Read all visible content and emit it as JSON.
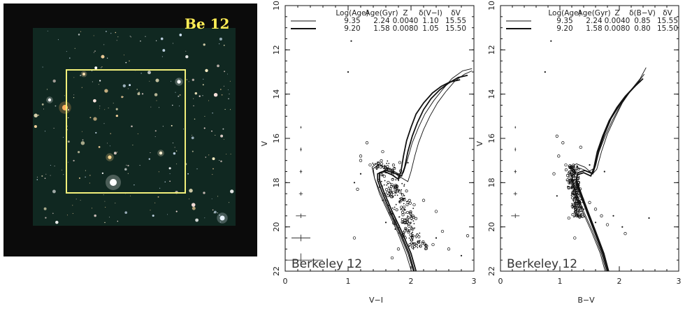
{
  "image_panel": {
    "label": "Be 12",
    "box_color": "#f2f07a",
    "label_color": "#ffee55"
  },
  "chart_data": [
    {
      "type": "scatter",
      "cluster_label": "Berkeley 12",
      "xlabel": "V−I",
      "ylabel": "V",
      "xlim": [
        0,
        3
      ],
      "ylim": [
        22,
        10
      ],
      "x_ticks": [
        "0",
        "1",
        "2",
        "3"
      ],
      "y_ticks": [
        "10",
        "12",
        "14",
        "16",
        "18",
        "20",
        "22"
      ],
      "legend": {
        "headers": [
          "Log(Age)",
          "Age(Gyr)",
          "Z",
          "δ(V−I)",
          "δV"
        ],
        "rows": [
          {
            "style": "thin",
            "values": [
              "9.35",
              "2.24",
              "0.0040",
              "1.10",
              "15.55"
            ]
          },
          {
            "style": "thick",
            "values": [
              "9.20",
              "1.58",
              "0.0080",
              "1.05",
              "15.50"
            ]
          }
        ]
      },
      "isochrones": [
        {
          "style": "thin",
          "points": [
            [
              2.08,
              22.4
            ],
            [
              1.95,
              21.2
            ],
            [
              1.8,
              20.2
            ],
            [
              1.65,
              19.3
            ],
            [
              1.52,
              18.5
            ],
            [
              1.42,
              17.8
            ],
            [
              1.38,
              17.3
            ],
            [
              1.45,
              17.15
            ],
            [
              1.6,
              17.3
            ],
            [
              1.8,
              17.7
            ],
            [
              1.95,
              17.95
            ],
            [
              2.0,
              17.5
            ],
            [
              2.06,
              16.8
            ],
            [
              2.12,
              16.2
            ],
            [
              2.2,
              15.6
            ],
            [
              2.3,
              15.0
            ],
            [
              2.42,
              14.4
            ],
            [
              2.55,
              13.9
            ],
            [
              2.7,
              13.4
            ],
            [
              2.85,
              13.1
            ],
            [
              2.97,
              12.95
            ]
          ]
        },
        {
          "style": "thin",
          "points": [
            [
              2.05,
              22.4
            ],
            [
              1.92,
              21.2
            ],
            [
              1.78,
              20.2
            ],
            [
              1.63,
              19.3
            ],
            [
              1.5,
              18.5
            ],
            [
              1.42,
              17.8
            ],
            [
              1.4,
              17.35
            ],
            [
              1.5,
              17.2
            ],
            [
              1.65,
              17.35
            ],
            [
              1.8,
              17.6
            ],
            [
              1.88,
              17.55
            ],
            [
              1.95,
              16.9
            ],
            [
              2.02,
              16.2
            ],
            [
              2.12,
              15.5
            ],
            [
              2.22,
              14.9
            ],
            [
              2.36,
              14.3
            ],
            [
              2.5,
              13.8
            ],
            [
              2.65,
              13.3
            ],
            [
              2.82,
              12.95
            ],
            [
              2.97,
              12.85
            ]
          ]
        },
        {
          "style": "thick",
          "points": [
            [
              2.12,
              22.4
            ],
            [
              2.0,
              21.2
            ],
            [
              1.85,
              20.2
            ],
            [
              1.7,
              19.3
            ],
            [
              1.58,
              18.5
            ],
            [
              1.5,
              17.9
            ],
            [
              1.5,
              17.55
            ],
            [
              1.6,
              17.45
            ],
            [
              1.72,
              17.55
            ],
            [
              1.85,
              17.7
            ],
            [
              1.9,
              17.3
            ],
            [
              1.95,
              16.6
            ],
            [
              2.02,
              15.9
            ],
            [
              2.1,
              15.3
            ],
            [
              2.2,
              14.7
            ],
            [
              2.32,
              14.2
            ],
            [
              2.46,
              13.8
            ],
            [
              2.6,
              13.5
            ],
            [
              2.75,
              13.25
            ],
            [
              2.9,
              13.15
            ]
          ]
        },
        {
          "style": "thick",
          "points": [
            [
              2.09,
              22.4
            ],
            [
              1.97,
              21.2
            ],
            [
              1.82,
              20.2
            ],
            [
              1.67,
              19.3
            ],
            [
              1.55,
              18.5
            ],
            [
              1.47,
              17.9
            ],
            [
              1.47,
              17.6
            ],
            [
              1.58,
              17.5
            ],
            [
              1.7,
              17.65
            ],
            [
              1.8,
              17.85
            ],
            [
              1.84,
              17.5
            ],
            [
              1.88,
              16.8
            ],
            [
              1.93,
              16.1
            ],
            [
              2.0,
              15.5
            ],
            [
              2.08,
              14.9
            ],
            [
              2.2,
              14.4
            ],
            [
              2.34,
              13.95
            ],
            [
              2.48,
              13.65
            ],
            [
              2.62,
              13.45
            ],
            [
              2.78,
              13.35
            ]
          ]
        }
      ],
      "error_bars": [
        {
          "x": 0.25,
          "y": 15.5,
          "ex": 0.01,
          "ey": 0.05
        },
        {
          "x": 0.25,
          "y": 16.5,
          "ex": 0.015,
          "ey": 0.08
        },
        {
          "x": 0.25,
          "y": 17.5,
          "ex": 0.02,
          "ey": 0.08
        },
        {
          "x": 0.25,
          "y": 18.5,
          "ex": 0.03,
          "ey": 0.08
        },
        {
          "x": 0.25,
          "y": 19.5,
          "ex": 0.08,
          "ey": 0.1
        },
        {
          "x": 0.25,
          "y": 20.5,
          "ex": 0.15,
          "ey": 0.15
        },
        {
          "x": 0.25,
          "y": 21.5,
          "ex": 0.35,
          "ey": 0.3
        }
      ],
      "star_points": [
        [
          1.05,
          11.6
        ],
        [
          1.0,
          13.0
        ],
        [
          1.55,
          18.8
        ],
        [
          1.7,
          19.4
        ],
        [
          1.6,
          19.8
        ],
        [
          1.75,
          20.1
        ],
        [
          1.5,
          18.2
        ],
        [
          1.85,
          18.5
        ],
        [
          2.0,
          19.5
        ],
        [
          2.4,
          20.5
        ],
        [
          2.8,
          21.3
        ],
        [
          1.1,
          18.0
        ],
        [
          1.2,
          17.6
        ],
        [
          1.95,
          17.1
        ]
      ],
      "circle_points": [
        [
          1.3,
          16.2
        ],
        [
          1.2,
          17.0
        ],
        [
          1.35,
          17.2
        ],
        [
          1.15,
          18.3
        ],
        [
          2.2,
          18.8
        ],
        [
          2.4,
          19.3
        ],
        [
          2.5,
          20.2
        ],
        [
          2.9,
          20.4
        ],
        [
          2.6,
          21.0
        ],
        [
          1.2,
          16.8
        ],
        [
          1.55,
          16.6
        ],
        [
          2.05,
          19.0
        ],
        [
          1.8,
          21.0
        ],
        [
          1.7,
          21.4
        ],
        [
          2.35,
          20.8
        ],
        [
          1.1,
          20.5
        ]
      ],
      "cloud": {
        "x_center": 1.55,
        "x_spread": 0.28,
        "y_min": 17.0,
        "y_max": 21.0,
        "x_slope": 0.14
      }
    },
    {
      "type": "scatter",
      "cluster_label": "Berkeley 12",
      "xlabel": "B−V",
      "ylabel": "V",
      "xlim": [
        0,
        3
      ],
      "ylim": [
        22,
        10
      ],
      "x_ticks": [
        "0",
        "1",
        "2",
        "3"
      ],
      "y_ticks": [
        "10",
        "12",
        "14",
        "16",
        "18",
        "20",
        "22"
      ],
      "legend": {
        "headers": [
          "Log(Age)",
          "Age(Gyr)",
          "Z",
          "δ(B−V)",
          "δV"
        ],
        "rows": [
          {
            "style": "thin",
            "values": [
              "9.35",
              "2.24",
              "0.0040",
              "0.85",
              "15.55"
            ]
          },
          {
            "style": "thick",
            "values": [
              "9.20",
              "1.58",
              "0.0080",
              "0.80",
              "15.50"
            ]
          }
        ]
      },
      "isochrones": [
        {
          "style": "thin",
          "points": [
            [
              1.82,
              22.4
            ],
            [
              1.7,
              21.2
            ],
            [
              1.55,
              20.2
            ],
            [
              1.4,
              19.3
            ],
            [
              1.28,
              18.5
            ],
            [
              1.2,
              17.8
            ],
            [
              1.18,
              17.3
            ],
            [
              1.28,
              17.15
            ],
            [
              1.42,
              17.3
            ],
            [
              1.55,
              17.6
            ],
            [
              1.62,
              17.4
            ],
            [
              1.7,
              16.6
            ],
            [
              1.8,
              15.8
            ],
            [
              1.92,
              15.1
            ],
            [
              2.05,
              14.4
            ],
            [
              2.2,
              13.8
            ],
            [
              2.35,
              13.3
            ],
            [
              2.45,
              12.8
            ]
          ]
        },
        {
          "style": "thin",
          "points": [
            [
              1.8,
              22.4
            ],
            [
              1.68,
              21.2
            ],
            [
              1.53,
              20.2
            ],
            [
              1.38,
              19.3
            ],
            [
              1.26,
              18.5
            ],
            [
              1.2,
              17.9
            ],
            [
              1.22,
              17.45
            ],
            [
              1.34,
              17.35
            ],
            [
              1.48,
              17.5
            ],
            [
              1.58,
              17.35
            ],
            [
              1.66,
              16.6
            ],
            [
              1.76,
              15.9
            ],
            [
              1.88,
              15.2
            ],
            [
              2.02,
              14.5
            ],
            [
              2.18,
              13.9
            ],
            [
              2.32,
              13.45
            ],
            [
              2.42,
              13.1
            ]
          ]
        },
        {
          "style": "thick",
          "points": [
            [
              1.86,
              22.4
            ],
            [
              1.74,
              21.2
            ],
            [
              1.6,
              20.2
            ],
            [
              1.47,
              19.3
            ],
            [
              1.36,
              18.5
            ],
            [
              1.28,
              17.9
            ],
            [
              1.3,
              17.55
            ],
            [
              1.42,
              17.45
            ],
            [
              1.55,
              17.6
            ],
            [
              1.6,
              17.2
            ],
            [
              1.66,
              16.5
            ],
            [
              1.75,
              15.8
            ],
            [
              1.86,
              15.1
            ],
            [
              2.0,
              14.5
            ],
            [
              2.14,
              14.0
            ],
            [
              2.28,
              13.6
            ],
            [
              2.4,
              13.3
            ]
          ]
        },
        {
          "style": "thick",
          "points": [
            [
              1.84,
              22.4
            ],
            [
              1.72,
              21.2
            ],
            [
              1.58,
              20.2
            ],
            [
              1.45,
              19.3
            ],
            [
              1.34,
              18.5
            ],
            [
              1.27,
              17.95
            ],
            [
              1.29,
              17.65
            ],
            [
              1.4,
              17.55
            ],
            [
              1.52,
              17.7
            ],
            [
              1.57,
              17.35
            ],
            [
              1.63,
              16.6
            ],
            [
              1.72,
              15.9
            ],
            [
              1.83,
              15.2
            ],
            [
              1.96,
              14.6
            ],
            [
              2.1,
              14.1
            ],
            [
              2.24,
              13.7
            ],
            [
              2.36,
              13.4
            ]
          ]
        }
      ],
      "error_bars": [
        {
          "x": 0.25,
          "y": 15.5,
          "ex": 0.01,
          "ey": 0.05
        },
        {
          "x": 0.25,
          "y": 16.5,
          "ex": 0.012,
          "ey": 0.08
        },
        {
          "x": 0.25,
          "y": 17.5,
          "ex": 0.02,
          "ey": 0.08
        },
        {
          "x": 0.25,
          "y": 18.5,
          "ex": 0.03,
          "ey": 0.08
        },
        {
          "x": 0.25,
          "y": 19.5,
          "ex": 0.07,
          "ey": 0.1
        }
      ],
      "star_points": [
        [
          0.85,
          11.6
        ],
        [
          0.75,
          13.0
        ],
        [
          1.2,
          18.2
        ],
        [
          1.3,
          18.9
        ],
        [
          1.4,
          19.2
        ],
        [
          1.6,
          19.8
        ],
        [
          1.9,
          19.5
        ],
        [
          2.05,
          20.0
        ],
        [
          2.5,
          19.6
        ],
        [
          0.95,
          18.6
        ],
        [
          1.5,
          17.2
        ],
        [
          1.75,
          17.5
        ]
      ],
      "circle_points": [
        [
          0.95,
          15.9
        ],
        [
          1.05,
          16.2
        ],
        [
          0.98,
          16.8
        ],
        [
          1.1,
          17.2
        ],
        [
          1.35,
          16.4
        ],
        [
          1.5,
          18.9
        ],
        [
          1.6,
          19.2
        ],
        [
          1.7,
          19.5
        ],
        [
          1.8,
          19.9
        ],
        [
          2.1,
          20.3
        ],
        [
          1.25,
          20.5
        ],
        [
          1.15,
          19.6
        ],
        [
          0.9,
          17.6
        ]
      ],
      "cloud": {
        "x_center": 1.2,
        "x_spread": 0.14,
        "y_min": 17.2,
        "y_max": 19.6,
        "x_slope": 0.05
      }
    }
  ]
}
